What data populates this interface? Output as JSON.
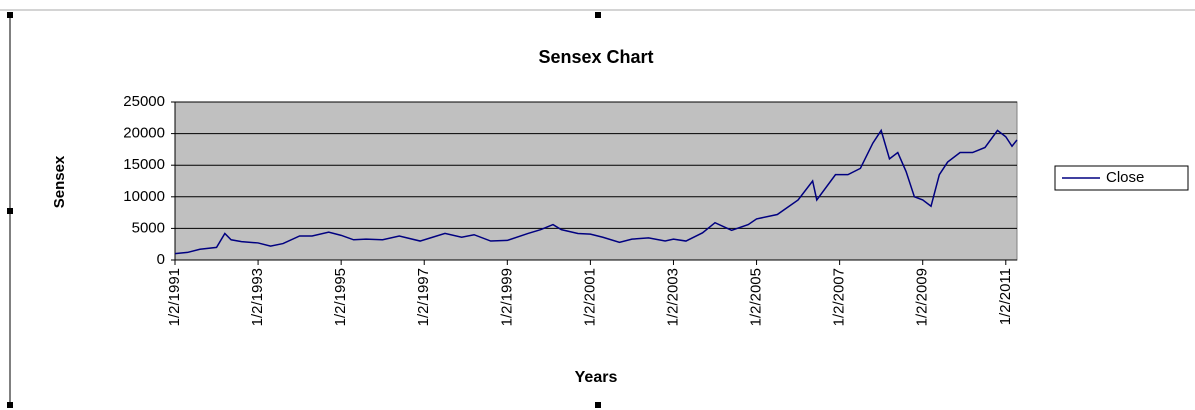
{
  "chart_data": {
    "type": "line",
    "title": "Sensex Chart",
    "x_label": "Years",
    "y_label": "Sensex",
    "x": [
      1991.0,
      1991.3,
      1991.6,
      1992.0,
      1992.2,
      1992.35,
      1992.6,
      1993.0,
      1993.3,
      1993.6,
      1994.0,
      1994.3,
      1994.7,
      1995.0,
      1995.3,
      1995.6,
      1996.0,
      1996.4,
      1996.9,
      1997.2,
      1997.5,
      1997.9,
      1998.2,
      1998.6,
      1999.0,
      1999.5,
      1999.8,
      2000.1,
      2000.3,
      2000.7,
      2001.0,
      2001.3,
      2001.7,
      2002.0,
      2002.4,
      2002.8,
      2003.0,
      2003.3,
      2003.7,
      2004.0,
      2004.4,
      2004.8,
      2005.0,
      2005.5,
      2006.0,
      2006.35,
      2006.45,
      2006.9,
      2007.2,
      2007.5,
      2007.8,
      2008.0,
      2008.2,
      2008.4,
      2008.6,
      2008.8,
      2009.0,
      2009.2,
      2009.4,
      2009.6,
      2009.9,
      2010.2,
      2010.5,
      2010.8,
      2011.0,
      2011.15,
      2011.27
    ],
    "series": [
      {
        "name": "Close",
        "color": "#000080",
        "values": [
          1000,
          1200,
          1700,
          2000,
          4200,
          3200,
          2900,
          2700,
          2200,
          2600,
          3800,
          3800,
          4400,
          3900,
          3200,
          3300,
          3200,
          3800,
          3000,
          3600,
          4200,
          3600,
          4000,
          3000,
          3100,
          4200,
          4800,
          5600,
          4800,
          4200,
          4100,
          3600,
          2800,
          3300,
          3500,
          3000,
          3300,
          3000,
          4300,
          5900,
          4700,
          5600,
          6500,
          7200,
          9500,
          12500,
          9500,
          13500,
          13500,
          14500,
          18500,
          20500,
          16000,
          17000,
          14000,
          10000,
          9500,
          8500,
          13500,
          15500,
          17000,
          17000,
          17800,
          20500,
          19500,
          18000,
          19000
        ]
      }
    ],
    "xlim": [
      1991.0,
      2011.27
    ],
    "xticks": [
      {
        "value": 1991,
        "label": "1/2/1991"
      },
      {
        "value": 1993,
        "label": "1/2/1993"
      },
      {
        "value": 1995,
        "label": "1/2/1995"
      },
      {
        "value": 1997,
        "label": "1/2/1997"
      },
      {
        "value": 1999,
        "label": "1/2/1999"
      },
      {
        "value": 2001,
        "label": "1/2/2001"
      },
      {
        "value": 2003,
        "label": "1/2/2003"
      },
      {
        "value": 2005,
        "label": "1/2/2005"
      },
      {
        "value": 2007,
        "label": "1/2/2007"
      },
      {
        "value": 2009,
        "label": "1/2/2009"
      },
      {
        "value": 2011,
        "label": "1/2/2011"
      }
    ],
    "ylim": [
      0,
      25000
    ],
    "yticks": [
      0,
      5000,
      10000,
      15000,
      20000,
      25000
    ],
    "grid": true,
    "legend": "right",
    "plot_background": "#c0c0c0"
  }
}
